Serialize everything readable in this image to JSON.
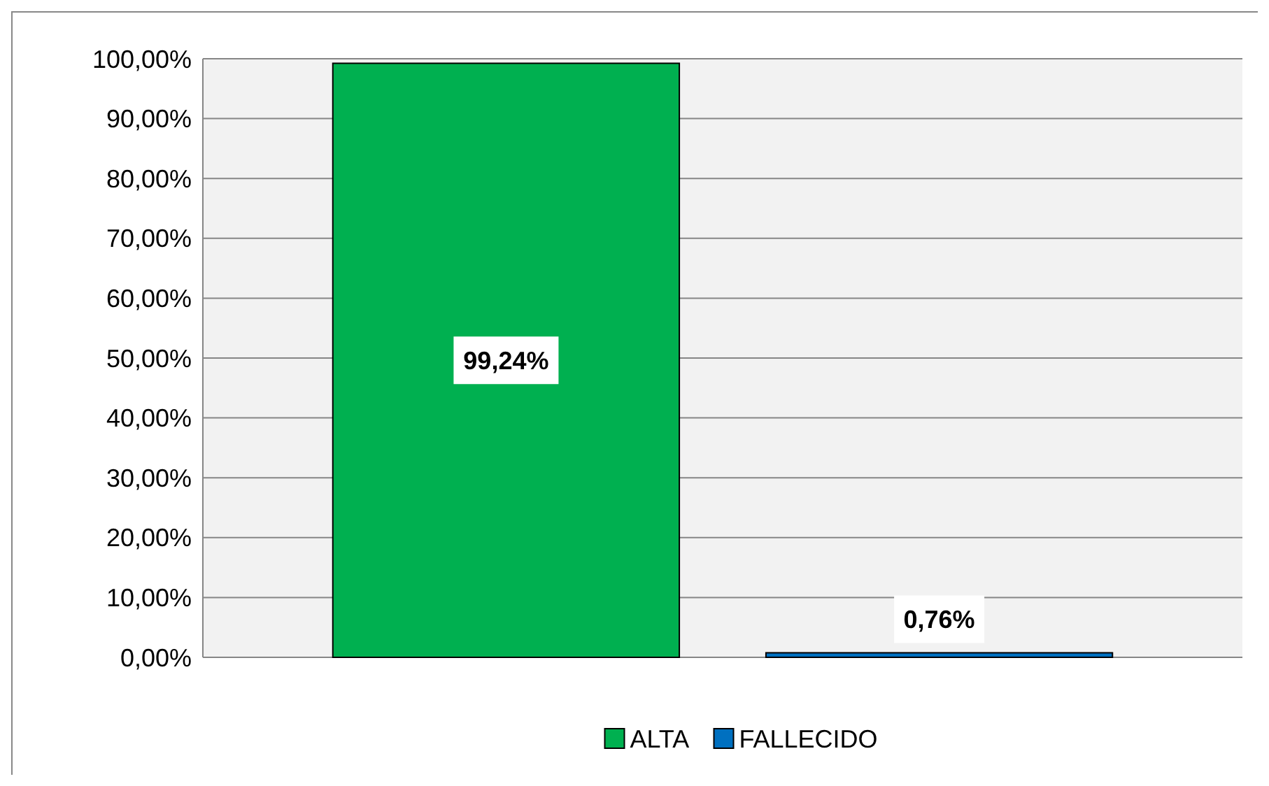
{
  "chart_data": {
    "type": "bar",
    "categories": [
      null,
      null
    ],
    "series": [
      {
        "name": "ALTA",
        "color": "#00b050",
        "values": [
          99.24,
          null
        ],
        "value_labels": [
          "99,24%",
          null
        ]
      },
      {
        "name": "FALLECIDO",
        "color": "#0070c0",
        "values": [
          null,
          0.76
        ],
        "value_labels": [
          null,
          "0,76%"
        ]
      }
    ],
    "ylim": [
      0,
      100
    ],
    "yticks": [
      {
        "value": 0,
        "label": "0,00%"
      },
      {
        "value": 10,
        "label": "10,00%"
      },
      {
        "value": 20,
        "label": "20,00%"
      },
      {
        "value": 30,
        "label": "30,00%"
      },
      {
        "value": 40,
        "label": "40,00%"
      },
      {
        "value": 50,
        "label": "50,00%"
      },
      {
        "value": 60,
        "label": "60,00%"
      },
      {
        "value": 70,
        "label": "70,00%"
      },
      {
        "value": 80,
        "label": "80,00%"
      },
      {
        "value": 90,
        "label": "90,00%"
      },
      {
        "value": 100,
        "label": "100,00%"
      }
    ],
    "grid": "y",
    "legend": "bottom",
    "tick_labels": "y"
  }
}
